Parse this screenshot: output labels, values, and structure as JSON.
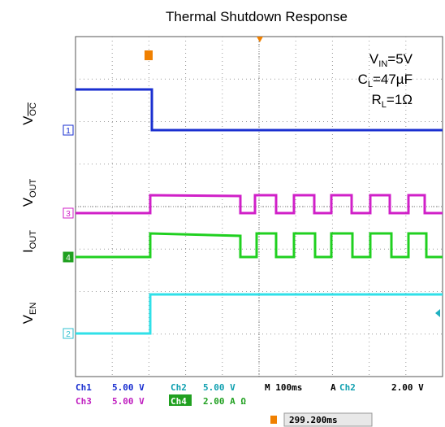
{
  "title": "Thermal Shutdown Response",
  "conditions": [
    {
      "main": "V",
      "sub": "IN",
      "rest": "=5V"
    },
    {
      "main": "C",
      "sub": "L",
      "rest": "=47µF"
    },
    {
      "main": "R",
      "sub": "L",
      "rest": "=1Ω"
    }
  ],
  "channel_labels": [
    {
      "main": "V",
      "sub": "OC"
    },
    {
      "main": "V",
      "sub": "OUT"
    },
    {
      "main": "I",
      "sub": "OUT"
    },
    {
      "main": "V",
      "sub": "EN"
    }
  ],
  "markers": [
    "1",
    "3",
    "4",
    "2"
  ],
  "status": {
    "row1": [
      "Ch1",
      "5.00 V",
      "Ch2",
      "5.00 V",
      "M 100ms",
      "A",
      "Ch2",
      "2.00 V"
    ],
    "row2": [
      "Ch3",
      "5.00 V",
      "Ch4",
      "2.00 A Ω"
    ],
    "trigger_pos": "299.200ms"
  }
}
